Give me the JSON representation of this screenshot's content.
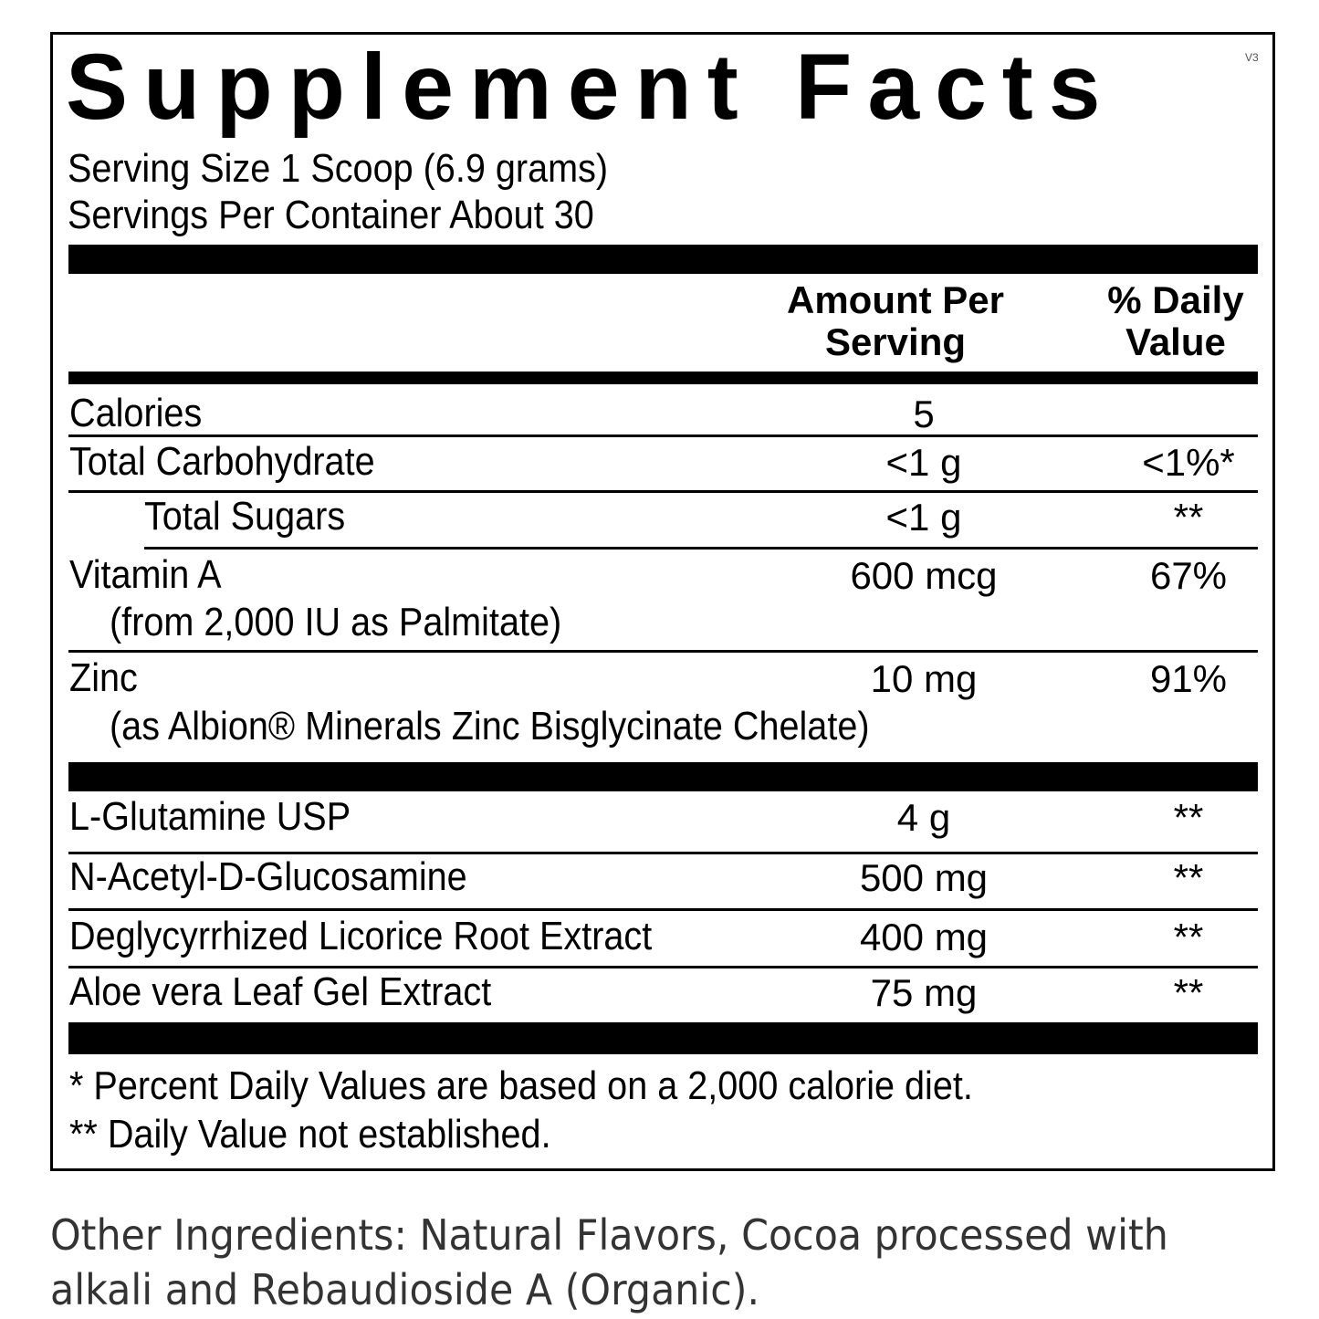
{
  "label": {
    "title": "Supplement Facts",
    "version": "V3",
    "serving_size": "Serving Size 1 Scoop (6.9 grams)",
    "servings_per_container": "Servings Per Container About 30",
    "header": {
      "amount": [
        "Amount Per",
        "Serving"
      ],
      "daily_value": [
        "% Daily",
        "Value"
      ]
    },
    "rows": [
      {
        "name": "Calories",
        "amount": "5"
      },
      {
        "name": "Total Carbohydrate",
        "amount": "<1 g",
        "daily_value": "<1%*"
      },
      {
        "name": "Total Sugars",
        "amount": "<1 g",
        "daily_value": "**"
      },
      {
        "name": "Vitamin A",
        "detail": "(from 2,000 IU as Palmitate)",
        "amount": "600 mcg",
        "daily_value": "67%"
      },
      {
        "name": "Zinc",
        "detail": "(as Albion® Minerals Zinc Bisglycinate Chelate)",
        "amount": "10 mg",
        "daily_value": "91%"
      },
      {
        "name": "L-Glutamine USP",
        "amount": "4 g",
        "daily_value": "**"
      },
      {
        "name": "N-Acetyl-D-Glucosamine",
        "amount": "500 mg",
        "daily_value": "**"
      },
      {
        "name": "Deglycyrrhized Licorice Root Extract",
        "amount": "400 mg",
        "daily_value": "**"
      },
      {
        "name": "Aloe vera Leaf Gel Extract",
        "amount": "75 mg",
        "daily_value": "**"
      }
    ],
    "footnotes": [
      "* Percent Daily Values are based on a 2,000 calorie diet.",
      "** Daily Value not established."
    ]
  },
  "other_ingredients": [
    "Other Ingredients: Natural Flavors, Cocoa processed with",
    "alkali and Rebaudioside A (Organic)."
  ]
}
